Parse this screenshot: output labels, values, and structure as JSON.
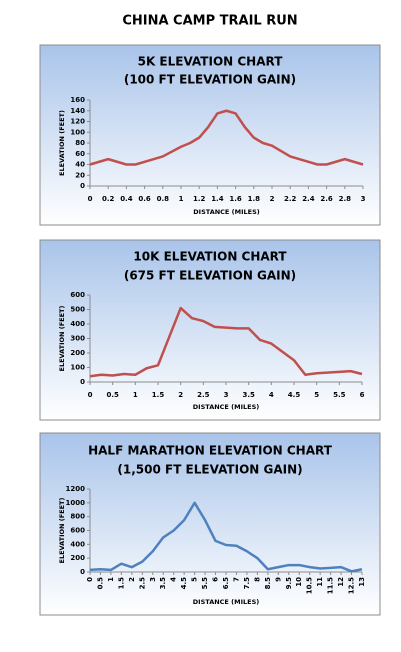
{
  "title": "CHINA CAMP TRAIL RUN",
  "chart_data": [
    {
      "type": "line",
      "title": "5K ELEVATION CHART",
      "subtitle": "(100 FT ELEVATION GAIN)",
      "x_label": "DISTANCE (MILES)",
      "y_label": "ELEVATION (FEET)",
      "color": "#c0504d",
      "x": [
        0,
        0.2,
        0.4,
        0.5,
        0.6,
        0.8,
        1.0,
        1.1,
        1.2,
        1.3,
        1.4,
        1.5,
        1.6,
        1.7,
        1.8,
        1.9,
        2.0,
        2.2,
        2.4,
        2.5,
        2.6,
        2.8,
        3.0
      ],
      "values": [
        40,
        50,
        40,
        40,
        45,
        55,
        73,
        80,
        90,
        110,
        135,
        140,
        135,
        110,
        90,
        80,
        75,
        55,
        45,
        40,
        40,
        50,
        40
      ],
      "xlim": [
        0,
        3
      ],
      "xticks": [
        0,
        0.2,
        0.4,
        0.6,
        0.8,
        1,
        1.2,
        1.4,
        1.6,
        1.8,
        2,
        2.2,
        2.4,
        2.6,
        2.8,
        3
      ],
      "ylim": [
        0,
        160
      ],
      "yticks": [
        0,
        20,
        40,
        60,
        80,
        100,
        120,
        140,
        160
      ]
    },
    {
      "type": "line",
      "title": "10K ELEVATION CHART",
      "subtitle": "(675 FT ELEVATION GAIN)",
      "x_label": "DISTANCE (MILES)",
      "y_label": "ELEVATION (FEET)",
      "color": "#c0504d",
      "x": [
        0,
        0.25,
        0.5,
        0.75,
        1.0,
        1.25,
        1.5,
        2.0,
        2.25,
        2.5,
        2.75,
        3.0,
        3.25,
        3.5,
        3.75,
        4.0,
        4.5,
        4.75,
        5.0,
        5.5,
        5.75,
        6.0
      ],
      "values": [
        40,
        50,
        45,
        55,
        50,
        95,
        115,
        510,
        440,
        420,
        380,
        375,
        370,
        370,
        290,
        265,
        150,
        50,
        60,
        70,
        75,
        55
      ],
      "xlim": [
        0,
        6
      ],
      "xticks": [
        0,
        0.5,
        1,
        1.5,
        2,
        2.5,
        3,
        3.5,
        4,
        4.5,
        5,
        5.5,
        6
      ],
      "ylim": [
        0,
        600
      ],
      "yticks": [
        0,
        100,
        200,
        300,
        400,
        500,
        600
      ]
    },
    {
      "type": "line",
      "title": "HALF MARATHON ELEVATION CHART",
      "subtitle": "(1,500 FT ELEVATION GAIN)",
      "x_label": "DISTANCE (MILES)",
      "y_label": "ELEVATION (FEET)",
      "color": "#4f81bd",
      "x": [
        0,
        0.5,
        1,
        1.5,
        2,
        2.5,
        3,
        3.5,
        4,
        4.5,
        5,
        5.5,
        6,
        6.5,
        7,
        7.5,
        8,
        8.5,
        9,
        9.5,
        10,
        10.5,
        11,
        11.5,
        12,
        12.5,
        13
      ],
      "values": [
        30,
        40,
        30,
        120,
        70,
        150,
        300,
        500,
        600,
        750,
        1000,
        750,
        450,
        390,
        380,
        300,
        200,
        40,
        70,
        100,
        100,
        70,
        50,
        60,
        70,
        10,
        40
      ],
      "xlim": [
        0,
        13
      ],
      "xticks": [
        0,
        0.5,
        1,
        1.5,
        2,
        2.5,
        3,
        3.5,
        4,
        4.5,
        5,
        5.5,
        6,
        6.5,
        7,
        7.5,
        8,
        8.5,
        9,
        9.5,
        10,
        10.5,
        11,
        11.5,
        12,
        12.5,
        13
      ],
      "ylim": [
        0,
        1200
      ],
      "yticks": [
        0,
        200,
        400,
        600,
        800,
        1000,
        1200
      ]
    }
  ]
}
